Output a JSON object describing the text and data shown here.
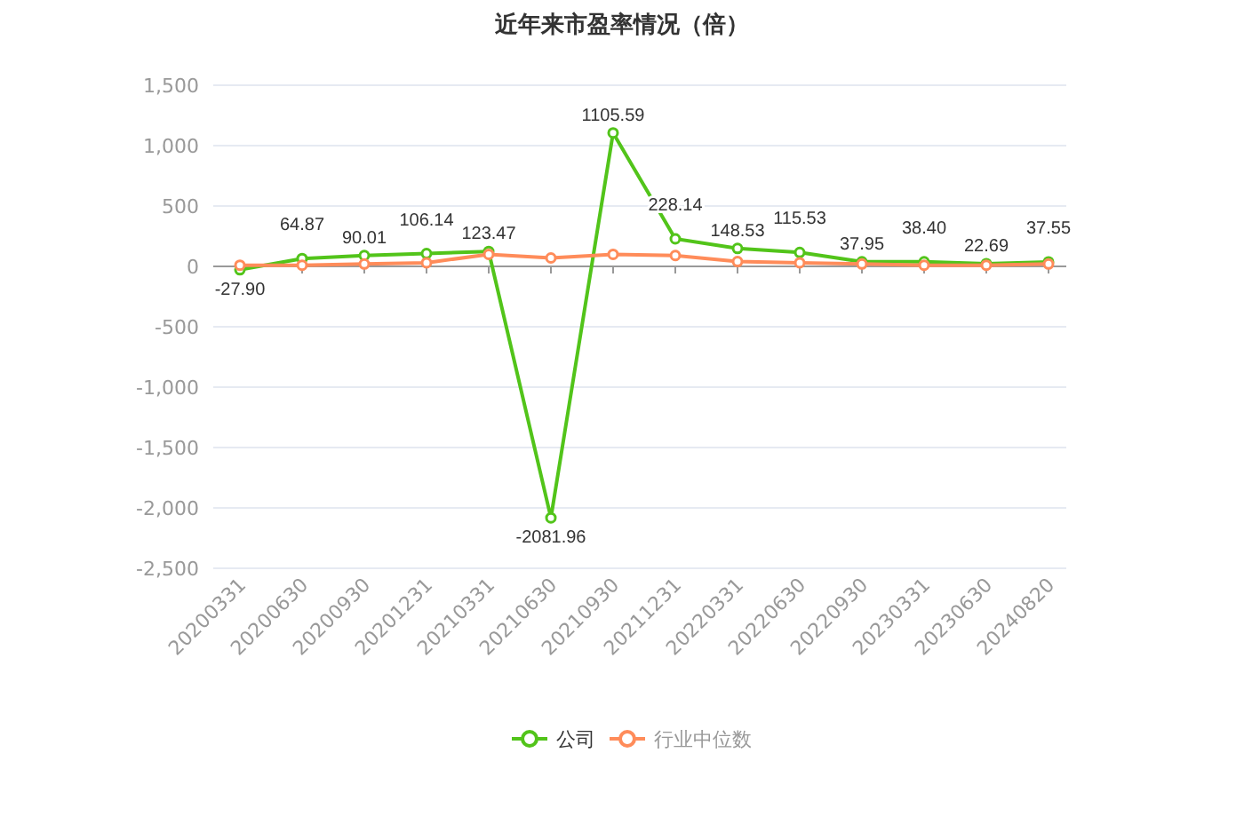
{
  "chart_data": {
    "type": "line",
    "title": "近年来市盈率情况（倍）",
    "categories": [
      "20200331",
      "20200630",
      "20200930",
      "20201231",
      "20210331",
      "20210630",
      "20210930",
      "20211231",
      "20220331",
      "20220630",
      "20220930",
      "20230331",
      "20230630",
      "20240820"
    ],
    "series": [
      {
        "name": "公司",
        "color": "#52c41a",
        "values": [
          -27.9,
          64.87,
          90.01,
          106.14,
          123.47,
          -2081.96,
          1105.59,
          228.14,
          148.53,
          115.53,
          37.95,
          38.4,
          22.69,
          37.55
        ],
        "value_labels": [
          "-27.90",
          "64.87",
          "90.01",
          "106.14",
          "123.47",
          "-2081.96",
          "1105.59",
          "228.14",
          "148.53",
          "115.53",
          "37.95",
          "38.40",
          "22.69",
          "37.55"
        ]
      },
      {
        "name": "行业中位数",
        "color": "#ff8c5a",
        "values": [
          10,
          10,
          20,
          30,
          100,
          70,
          100,
          90,
          40,
          30,
          20,
          10,
          10,
          20
        ]
      }
    ],
    "ylim": [
      -2500,
      1500
    ],
    "yticks": [
      {
        "value": -2500,
        "label": "-2,500"
      },
      {
        "value": -2000,
        "label": "-2,000"
      },
      {
        "value": -1500,
        "label": "-1,500"
      },
      {
        "value": -1000,
        "label": "-1,000"
      },
      -500,
      0,
      500,
      {
        "value": 1000,
        "label": "1,000"
      },
      {
        "value": 1500,
        "label": "1,500"
      }
    ],
    "grid": "y",
    "legend": "bottom",
    "marker": "circle",
    "line_style": "solid"
  }
}
